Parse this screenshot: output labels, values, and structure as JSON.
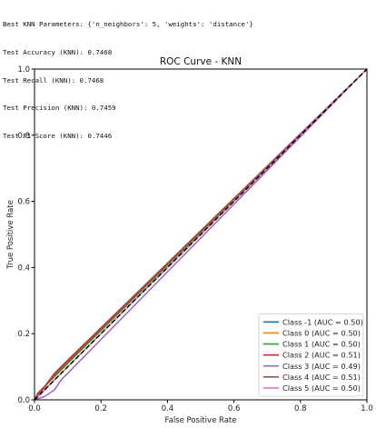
{
  "console_lines": [
    "Best KNN Parameters: {'n_neighbors': 5, 'weights': 'distance'}",
    "Test Accuracy (KNN): 0.7468",
    "Test Recall (KNN): 0.7468",
    "Test Precision (KNN): 0.7459",
    "Test F1 Score (KNN): 0.7446"
  ],
  "chart_data": {
    "type": "line",
    "title": "ROC Curve - KNN",
    "xlabel": "False Positive Rate",
    "ylabel": "True Positive Rate",
    "xlim": [
      0,
      1
    ],
    "ylim": [
      0,
      1
    ],
    "xticks": [
      "0.0",
      "0.2",
      "0.4",
      "0.6",
      "0.8",
      "1.0"
    ],
    "yticks": [
      "0.0",
      "0.2",
      "0.4",
      "0.6",
      "0.8",
      "1.0"
    ],
    "grid": false,
    "legend_position": "lower right",
    "diagonal": {
      "style": "dashed",
      "color": "#000000"
    },
    "series": [
      {
        "name": "Class -1 (AUC = 0.50)",
        "color": "#1f77b4",
        "x": [
          0,
          0.02,
          0.05,
          0.1,
          1
        ],
        "y": [
          0,
          0.02,
          0.05,
          0.1,
          1
        ]
      },
      {
        "name": "Class 0 (AUC = 0.50)",
        "color": "#ff7f0e",
        "x": [
          0,
          0.03,
          0.07,
          1
        ],
        "y": [
          0,
          0.03,
          0.07,
          1
        ]
      },
      {
        "name": "Class 1 (AUC = 0.50)",
        "color": "#2ca02c",
        "x": [
          0,
          0.02,
          0.05,
          0.08,
          0.12,
          1
        ],
        "y": [
          0,
          0.03,
          0.06,
          0.09,
          0.13,
          1
        ]
      },
      {
        "name": "Class 2 (AUC = 0.51)",
        "color": "#d62728",
        "x": [
          0,
          0.01,
          0.03,
          0.06,
          0.1,
          1
        ],
        "y": [
          0,
          0.02,
          0.04,
          0.08,
          0.12,
          1
        ]
      },
      {
        "name": "Class 3 (AUC = 0.49)",
        "color": "#9467bd",
        "x": [
          0,
          0.03,
          0.06,
          0.08,
          1
        ],
        "y": [
          0,
          0.01,
          0.03,
          0.06,
          1
        ]
      },
      {
        "name": "Class 4 (AUC = 0.51)",
        "color": "#8c564b",
        "x": [
          0,
          0.02,
          0.04,
          0.07,
          0.1,
          1
        ],
        "y": [
          0,
          0.025,
          0.05,
          0.085,
          0.115,
          1
        ]
      },
      {
        "name": "Class 5 (AUC = 0.50)",
        "color": "#e377c2",
        "x": [
          0,
          0.04,
          0.08,
          1
        ],
        "y": [
          0,
          0.04,
          0.08,
          1
        ]
      }
    ]
  }
}
